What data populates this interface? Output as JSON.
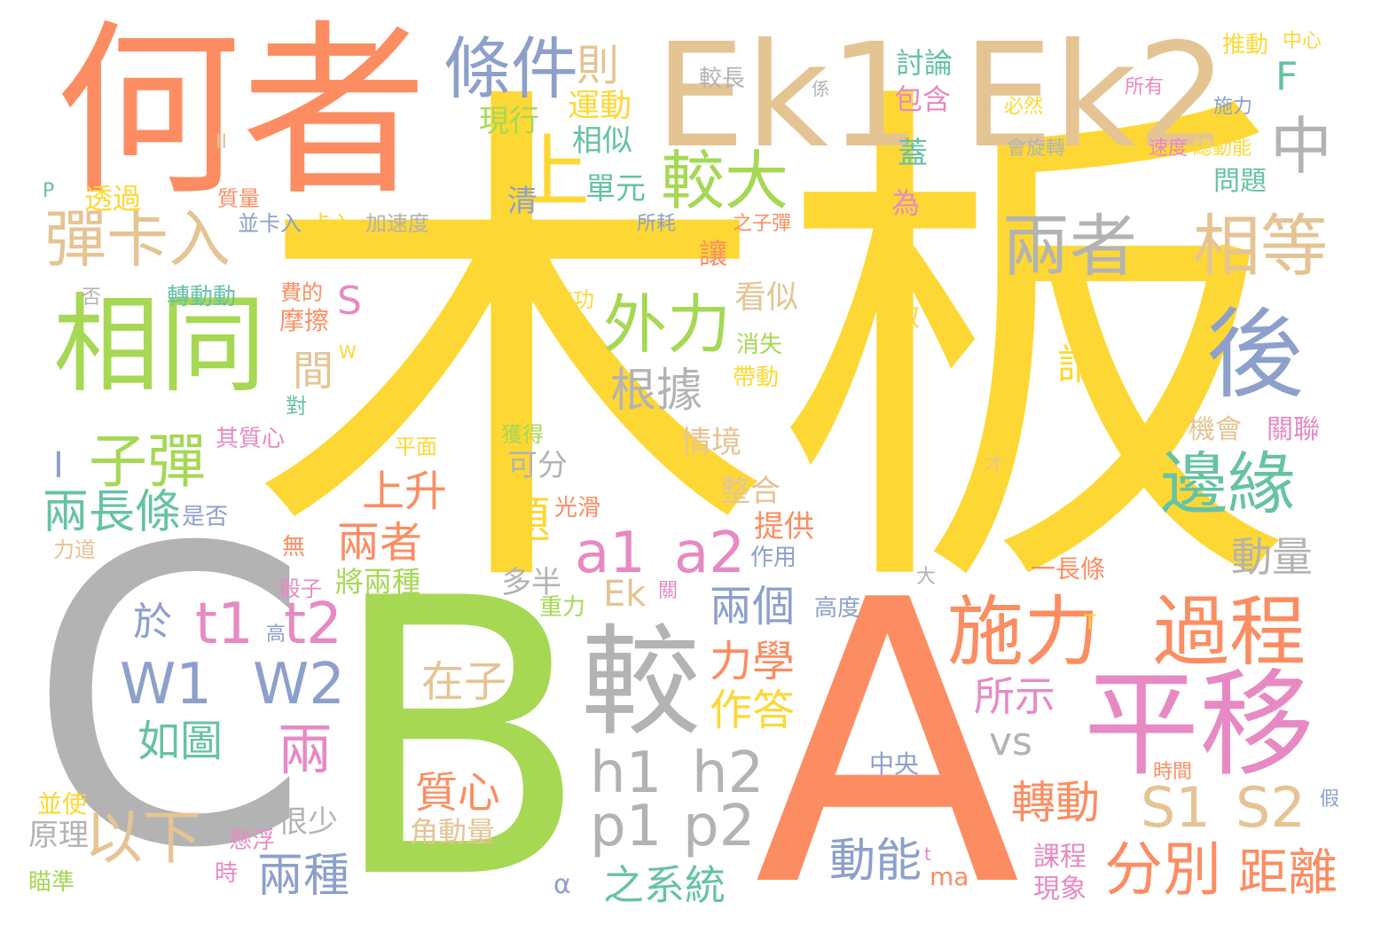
{
  "colors": {
    "yellow": "#fdd835",
    "green": "#a6d854",
    "orange": "#fc8d62",
    "gray": "#b3b3b3",
    "tan": "#e5c494",
    "blue": "#8da0cb",
    "pink": "#e78ac3",
    "teal": "#66c2a5"
  },
  "words": [
    {
      "text": "木板",
      "color": "yellow"
    },
    {
      "text": "C",
      "color": "gray"
    },
    {
      "text": "B",
      "color": "green"
    },
    {
      "text": "A",
      "color": "orange"
    },
    {
      "text": "何者",
      "color": "orange"
    },
    {
      "text": "Ek1",
      "color": "tan"
    },
    {
      "text": "Ek2",
      "color": "tan"
    },
    {
      "text": "平移",
      "color": "pink"
    },
    {
      "text": "較",
      "color": "gray"
    },
    {
      "text": "相同",
      "color": "green"
    },
    {
      "text": "後",
      "color": "blue"
    },
    {
      "text": "條件",
      "color": "blue"
    },
    {
      "text": "兩者",
      "color": "gray"
    },
    {
      "text": "相等",
      "color": "tan"
    },
    {
      "text": "施力",
      "color": "orange"
    },
    {
      "text": "過程",
      "color": "orange"
    },
    {
      "text": "彈卡入",
      "color": "tan"
    },
    {
      "text": "上",
      "color": "yellow"
    },
    {
      "text": "較大",
      "color": "green"
    },
    {
      "text": "外力",
      "color": "green"
    },
    {
      "text": "中",
      "color": "gray"
    },
    {
      "text": "邊緣",
      "color": "teal"
    },
    {
      "text": "子彈",
      "color": "green"
    },
    {
      "text": "a1",
      "color": "pink"
    },
    {
      "text": "a2",
      "color": "pink"
    },
    {
      "text": "W1",
      "color": "blue"
    },
    {
      "text": "W2",
      "color": "blue"
    },
    {
      "text": "h1",
      "color": "gray"
    },
    {
      "text": "h2",
      "color": "gray"
    },
    {
      "text": "p1",
      "color": "gray"
    },
    {
      "text": "p2",
      "color": "gray"
    },
    {
      "text": "S1",
      "color": "tan"
    },
    {
      "text": "S2",
      "color": "tan"
    },
    {
      "text": "t1",
      "color": "pink"
    },
    {
      "text": "t2",
      "color": "pink"
    },
    {
      "text": "以下",
      "color": "tan"
    },
    {
      "text": "兩",
      "color": "pink"
    },
    {
      "text": "分別",
      "color": "orange"
    },
    {
      "text": "距離",
      "color": "orange"
    },
    {
      "text": "兩長條",
      "color": "teal"
    },
    {
      "text": "根據",
      "color": "gray"
    },
    {
      "text": "兩者",
      "color": "orange"
    },
    {
      "text": "上升",
      "color": "orange"
    },
    {
      "text": "題",
      "color": "yellow"
    },
    {
      "text": "兩個",
      "color": "blue"
    },
    {
      "text": "力學",
      "color": "orange"
    },
    {
      "text": "作答",
      "color": "yellow"
    },
    {
      "text": "在子",
      "color": "tan"
    },
    {
      "text": "質心",
      "color": "orange"
    },
    {
      "text": "動量",
      "color": "gray"
    },
    {
      "text": "轉動",
      "color": "orange"
    },
    {
      "text": "動能",
      "color": "blue"
    },
    {
      "text": "之系統",
      "color": "teal"
    },
    {
      "text": "兩種",
      "color": "blue"
    },
    {
      "text": "如圖",
      "color": "teal"
    },
    {
      "text": "所示",
      "color": "pink"
    },
    {
      "text": "則",
      "color": "tan"
    },
    {
      "text": "運動",
      "color": "yellow"
    },
    {
      "text": "現行",
      "color": "green"
    },
    {
      "text": "相似",
      "color": "teal"
    },
    {
      "text": "單元",
      "color": "teal"
    },
    {
      "text": "討論",
      "color": "teal"
    },
    {
      "text": "包含",
      "color": "pink"
    },
    {
      "text": "較長",
      "color": "gray"
    },
    {
      "text": "F",
      "color": "teal"
    },
    {
      "text": "S",
      "color": "pink"
    },
    {
      "text": "間",
      "color": "tan"
    },
    {
      "text": "I",
      "color": "blue"
    },
    {
      "text": "請",
      "color": "yellow"
    },
    {
      "text": "Ek",
      "color": "tan"
    },
    {
      "text": "vs",
      "color": "gray"
    },
    {
      "text": "於",
      "color": "blue"
    },
    {
      "text": "看似",
      "color": "tan"
    },
    {
      "text": "情境",
      "color": "tan"
    },
    {
      "text": "整合",
      "color": "tan"
    },
    {
      "text": "提供",
      "color": "orange"
    },
    {
      "text": "可分",
      "color": "gray"
    },
    {
      "text": "多半",
      "color": "gray"
    },
    {
      "text": "將兩種",
      "color": "green"
    },
    {
      "text": "很少",
      "color": "gray"
    },
    {
      "text": "角動量",
      "color": "tan"
    },
    {
      "text": "原理",
      "color": "gray"
    },
    {
      "text": "課程",
      "color": "pink"
    },
    {
      "text": "現象",
      "color": "pink"
    },
    {
      "text": "透過",
      "color": "yellow"
    },
    {
      "text": "質量",
      "color": "orange"
    },
    {
      "text": "並卡入",
      "color": "blue"
    },
    {
      "text": "卡入",
      "color": "yellow"
    },
    {
      "text": "加速度",
      "color": "gray"
    },
    {
      "text": "轉動動",
      "color": "teal"
    },
    {
      "text": "費的",
      "color": "orange"
    },
    {
      "text": "摩擦",
      "color": "orange"
    },
    {
      "text": "作功",
      "color": "yellow"
    },
    {
      "text": "消失",
      "color": "green"
    },
    {
      "text": "帶動",
      "color": "yellow"
    },
    {
      "text": "對",
      "color": "teal"
    },
    {
      "text": "其質心",
      "color": "pink"
    },
    {
      "text": "是否",
      "color": "blue"
    },
    {
      "text": "平面",
      "color": "yellow"
    },
    {
      "text": "獲得",
      "color": "green"
    },
    {
      "text": "光滑",
      "color": "orange"
    },
    {
      "text": "力道",
      "color": "tan"
    },
    {
      "text": "無",
      "color": "orange"
    },
    {
      "text": "作用",
      "color": "blue"
    },
    {
      "text": "骰子",
      "color": "pink"
    },
    {
      "text": "重力",
      "color": "green"
    },
    {
      "text": "關",
      "color": "pink"
    },
    {
      "text": "高",
      "color": "blue"
    },
    {
      "text": "高度",
      "color": "blue"
    },
    {
      "text": "並使",
      "color": "yellow"
    },
    {
      "text": "懸浮",
      "color": "pink"
    },
    {
      "text": "時",
      "color": "pink"
    },
    {
      "text": "瞄準",
      "color": "green"
    },
    {
      "text": "ma",
      "color": "orange"
    },
    {
      "text": "t",
      "color": "pink"
    },
    {
      "text": "α",
      "color": "blue"
    },
    {
      "text": "中央",
      "color": "blue"
    },
    {
      "text": "時間",
      "color": "orange"
    },
    {
      "text": "一長條",
      "color": "orange"
    },
    {
      "text": "大",
      "color": "gray"
    },
    {
      "text": "假",
      "color": "blue"
    },
    {
      "text": "T",
      "color": "yellow"
    },
    {
      "text": "才",
      "color": "tan"
    },
    {
      "text": "h",
      "color": "yellow"
    },
    {
      "text": "機會",
      "color": "tan"
    },
    {
      "text": "關聯",
      "color": "pink"
    },
    {
      "text": "問題",
      "color": "teal"
    },
    {
      "text": "速度",
      "color": "pink"
    },
    {
      "text": "總動能",
      "color": "yellow"
    },
    {
      "text": "會旋轉",
      "color": "gray"
    },
    {
      "text": "施力",
      "color": "blue"
    },
    {
      "text": "必然",
      "color": "yellow"
    },
    {
      "text": "所有",
      "color": "pink"
    },
    {
      "text": "推動",
      "color": "yellow"
    },
    {
      "text": "中心",
      "color": "yellow"
    },
    {
      "text": "係",
      "color": "gray"
    },
    {
      "text": "蓋",
      "color": "teal"
    },
    {
      "text": "為",
      "color": "pink"
    },
    {
      "text": "讓",
      "color": "orange"
    },
    {
      "text": "做",
      "color": "yellow"
    },
    {
      "text": "之子彈",
      "color": "orange"
    },
    {
      "text": "所耗",
      "color": "blue"
    },
    {
      "text": "清",
      "color": "blue"
    },
    {
      "text": "否",
      "color": "gray"
    },
    {
      "text": "P",
      "color": "teal"
    },
    {
      "text": "II",
      "color": "tan"
    },
    {
      "text": "W",
      "color": "yellow"
    }
  ]
}
